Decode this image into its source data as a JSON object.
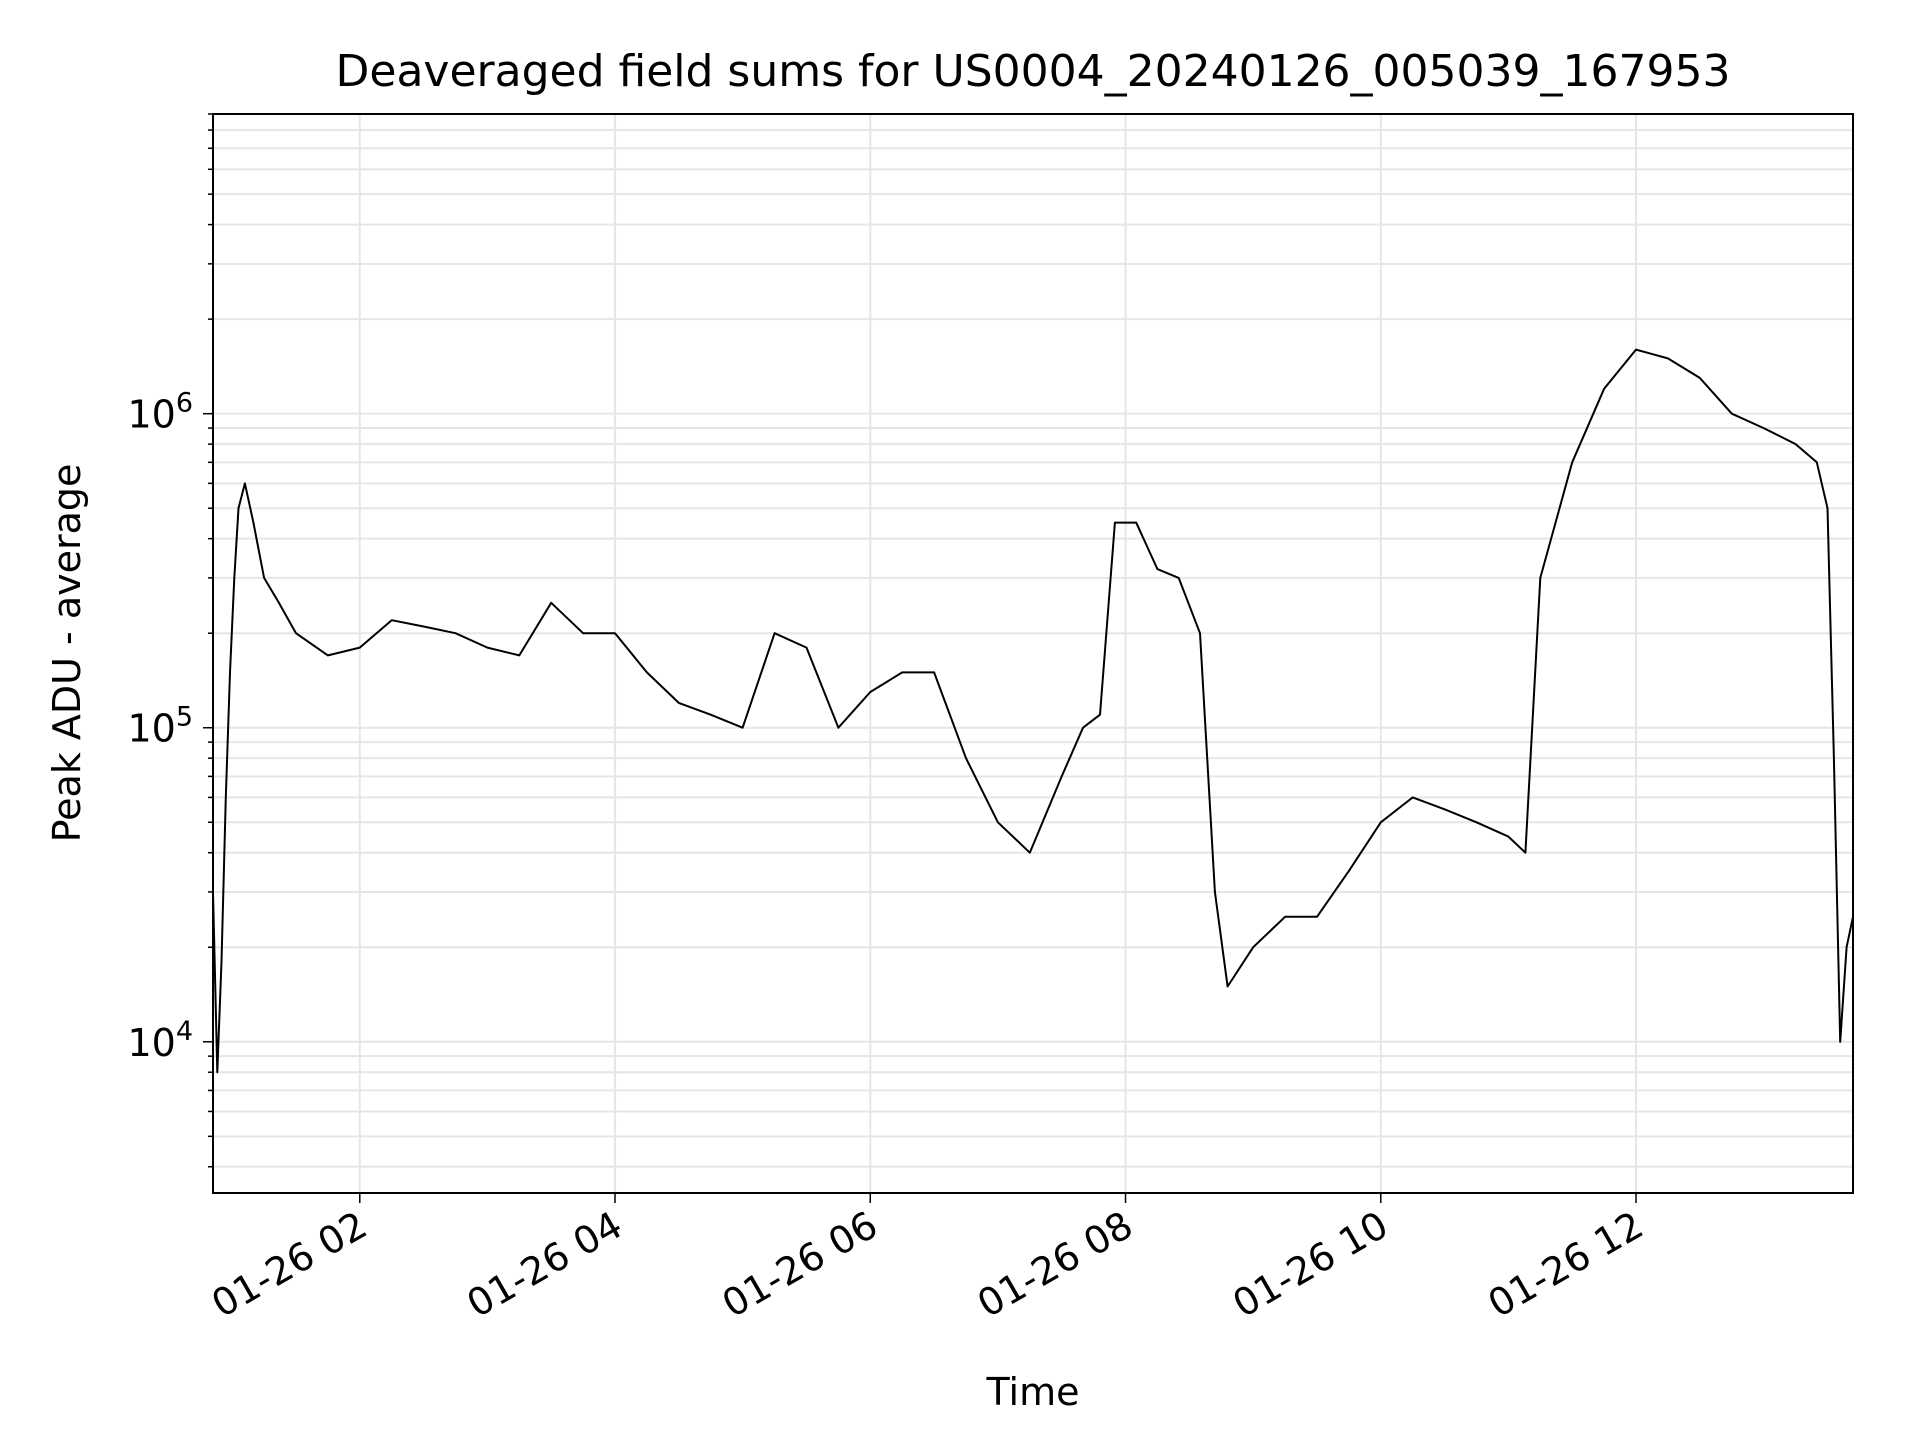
{
  "chart_data": {
    "type": "line",
    "title": "Deaveraged field sums for US0004_20240126_005039_167953",
    "xlabel": "Time",
    "ylabel": "Peak ADU - average",
    "x_scale": "time",
    "y_scale": "log",
    "xlim": [
      "2024-01-26 00:51",
      "2024-01-26 13:42"
    ],
    "ylim": [
      3300,
      9000000
    ],
    "x_ticks": [
      {
        "value": "2024-01-26 02:00",
        "label": "01-26 02"
      },
      {
        "value": "2024-01-26 04:00",
        "label": "01-26 04"
      },
      {
        "value": "2024-01-26 06:00",
        "label": "01-26 06"
      },
      {
        "value": "2024-01-26 08:00",
        "label": "01-26 08"
      },
      {
        "value": "2024-01-26 10:00",
        "label": "01-26 10"
      },
      {
        "value": "2024-01-26 12:00",
        "label": "01-26 12"
      }
    ],
    "y_ticks": [
      {
        "value": 10000,
        "base": "10",
        "exp": "4"
      },
      {
        "value": 100000,
        "base": "10",
        "exp": "5"
      },
      {
        "value": 1000000,
        "base": "10",
        "exp": "6"
      }
    ],
    "grid": true,
    "line_color": "#000000",
    "grid_color": "#e6e6e6",
    "series": [
      {
        "x": [
          "2024-01-26 00:51",
          "2024-01-26 00:53",
          "2024-01-26 00:55",
          "2024-01-26 00:57",
          "2024-01-26 00:59",
          "2024-01-26 01:01",
          "2024-01-26 01:03",
          "2024-01-26 01:06",
          "2024-01-26 01:10",
          "2024-01-26 01:15",
          "2024-01-26 01:22",
          "2024-01-26 01:30",
          "2024-01-26 01:45",
          "2024-01-26 02:00",
          "2024-01-26 02:15",
          "2024-01-26 02:30",
          "2024-01-26 02:45",
          "2024-01-26 03:00",
          "2024-01-26 03:15",
          "2024-01-26 03:30",
          "2024-01-26 03:45",
          "2024-01-26 04:00",
          "2024-01-26 04:15",
          "2024-01-26 04:30",
          "2024-01-26 04:45",
          "2024-01-26 05:00",
          "2024-01-26 05:15",
          "2024-01-26 05:30",
          "2024-01-26 05:45",
          "2024-01-26 06:00",
          "2024-01-26 06:15",
          "2024-01-26 06:30",
          "2024-01-26 06:45",
          "2024-01-26 07:00",
          "2024-01-26 07:15",
          "2024-01-26 07:30",
          "2024-01-26 07:40",
          "2024-01-26 07:48",
          "2024-01-26 07:55",
          "2024-01-26 08:05",
          "2024-01-26 08:15",
          "2024-01-26 08:25",
          "2024-01-26 08:35",
          "2024-01-26 08:42",
          "2024-01-26 08:48",
          "2024-01-26 09:00",
          "2024-01-26 09:15",
          "2024-01-26 09:30",
          "2024-01-26 09:45",
          "2024-01-26 10:00",
          "2024-01-26 10:15",
          "2024-01-26 10:30",
          "2024-01-26 10:45",
          "2024-01-26 11:00",
          "2024-01-26 11:08",
          "2024-01-26 11:15",
          "2024-01-26 11:30",
          "2024-01-26 11:45",
          "2024-01-26 12:00",
          "2024-01-26 12:15",
          "2024-01-26 12:30",
          "2024-01-26 12:45",
          "2024-01-26 13:00",
          "2024-01-26 13:15",
          "2024-01-26 13:25",
          "2024-01-26 13:30",
          "2024-01-26 13:33",
          "2024-01-26 13:36",
          "2024-01-26 13:39",
          "2024-01-26 13:42"
        ],
        "y": [
          30000,
          8000,
          18000,
          60000,
          150000,
          300000,
          500000,
          600000,
          450000,
          300000,
          250000,
          200000,
          170000,
          180000,
          220000,
          210000,
          200000,
          180000,
          170000,
          250000,
          200000,
          200000,
          150000,
          120000,
          110000,
          100000,
          200000,
          180000,
          100000,
          130000,
          150000,
          150000,
          80000,
          50000,
          40000,
          70000,
          100000,
          110000,
          450000,
          450000,
          320000,
          300000,
          200000,
          30000,
          15000,
          20000,
          25000,
          25000,
          35000,
          50000,
          60000,
          55000,
          50000,
          45000,
          40000,
          300000,
          700000,
          1200000,
          1600000,
          1500000,
          1300000,
          1000000,
          900000,
          800000,
          700000,
          500000,
          80000,
          10000,
          20000,
          25000
        ]
      }
    ]
  }
}
